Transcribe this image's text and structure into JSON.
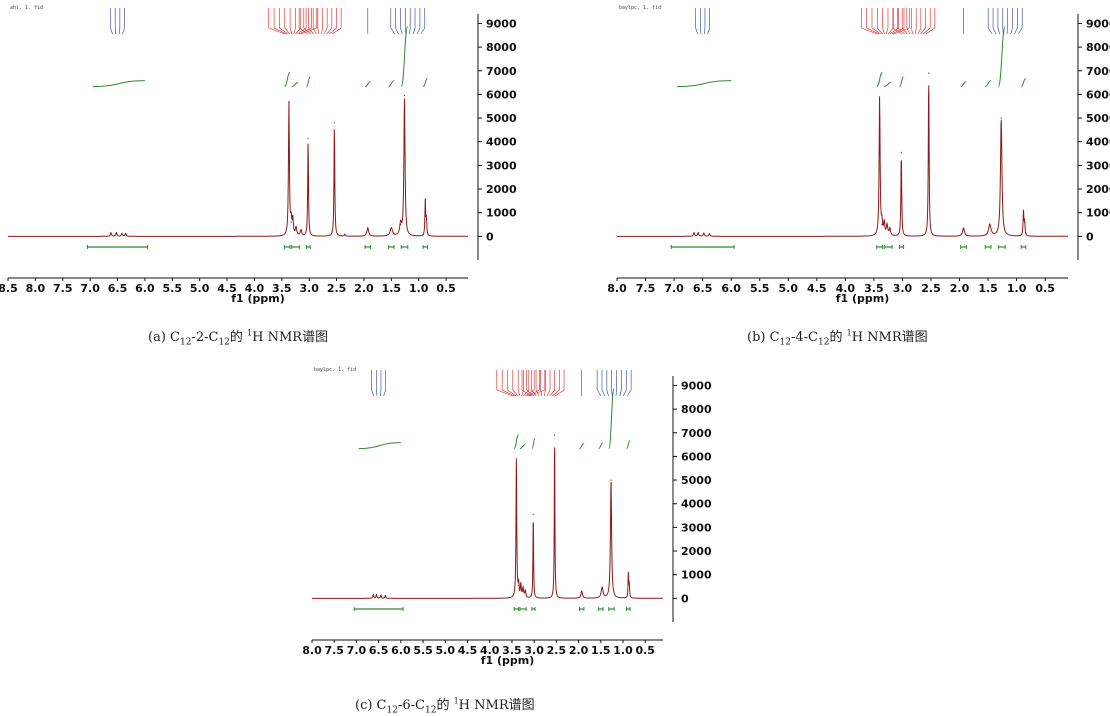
{
  "colors": {
    "spectrum": "#8b1a1a",
    "integral": "#2e8b2e",
    "peak_label_red": "#d62020",
    "peak_label_blue": "#2a3f8f",
    "axis": "#111111"
  },
  "chart_data": [
    {
      "type": "line",
      "file_name": "ahl. 1. fid",
      "caption": {
        "prefix": "(a) C",
        "sub1": "12",
        "mid": "-2-C",
        "sub2": "12",
        "after": "的 ",
        "sup": "1",
        "suffix": "H NMR谱图"
      },
      "xlabel": "f1 (ppm)",
      "x_ticks": [
        "8.5",
        "8.0",
        "7.5",
        "7.0",
        "6.5",
        "6.0",
        "5.5",
        "5.0",
        "4.5",
        "4.0",
        "3.5",
        "3.0",
        "2.5",
        "2.0",
        "1.5",
        "1.0",
        "0.5"
      ],
      "y_ticks": [
        "0",
        "1000",
        "2000",
        "3000",
        "4000",
        "5000",
        "6000",
        "7000",
        "8000",
        "9000"
      ],
      "xlim": [
        8.5,
        0.1
      ],
      "ylim": [
        -1000,
        9400
      ],
      "peaks": [
        {
          "x": 6.62,
          "y": 150,
          "w": 0.012
        },
        {
          "x": 6.52,
          "y": 150,
          "w": 0.012
        },
        {
          "x": 6.42,
          "y": 120,
          "w": 0.012
        },
        {
          "x": 6.35,
          "y": 120,
          "w": 0.012
        },
        {
          "x": 3.37,
          "y": 5650,
          "w": 0.01
        },
        {
          "x": 3.33,
          "y": 600,
          "w": 0.012
        },
        {
          "x": 3.3,
          "y": 700,
          "w": 0.012
        },
        {
          "x": 3.24,
          "y": 350,
          "w": 0.015
        },
        {
          "x": 3.15,
          "y": 250,
          "w": 0.015
        },
        {
          "x": 3.02,
          "y": 4150,
          "w": 0.008
        },
        {
          "x": 2.54,
          "y": 4800,
          "w": 0.008
        },
        {
          "x": 2.35,
          "y": 80,
          "w": 0.01
        },
        {
          "x": 1.93,
          "y": 350,
          "w": 0.02
        },
        {
          "x": 1.5,
          "y": 350,
          "w": 0.025
        },
        {
          "x": 1.33,
          "y": 500,
          "w": 0.02
        },
        {
          "x": 1.26,
          "y": 5950,
          "w": 0.012
        },
        {
          "x": 0.88,
          "y": 1500,
          "w": 0.008
        },
        {
          "x": 0.86,
          "y": 700,
          "w": 0.008
        }
      ]
    },
    {
      "type": "line",
      "file_name": "baylpc. 1. fid",
      "caption": {
        "prefix": "(b) C",
        "sub1": "12",
        "mid": "-4-C",
        "sub2": "12",
        "after": "的 ",
        "sup": "1",
        "suffix": "H NMR谱图"
      },
      "xlabel": "f1 (ppm)",
      "x_ticks": [
        "8.0",
        "7.5",
        "7.0",
        "6.5",
        "6.0",
        "5.5",
        "5.0",
        "4.5",
        "4.0",
        "3.5",
        "3.0",
        "2.5",
        "2.0",
        "1.5",
        "1.0",
        "0.5"
      ],
      "y_ticks": [
        "0",
        "1000",
        "2000",
        "3000",
        "4000",
        "5000",
        "6000",
        "7000",
        "8000",
        "9000"
      ],
      "xlim": [
        8.0,
        0.1
      ],
      "ylim": [
        -1000,
        9400
      ],
      "peaks": [
        {
          "x": 6.65,
          "y": 150,
          "w": 0.012
        },
        {
          "x": 6.58,
          "y": 150,
          "w": 0.012
        },
        {
          "x": 6.48,
          "y": 130,
          "w": 0.012
        },
        {
          "x": 6.38,
          "y": 110,
          "w": 0.012
        },
        {
          "x": 3.4,
          "y": 5900,
          "w": 0.01
        },
        {
          "x": 3.36,
          "y": 500,
          "w": 0.012
        },
        {
          "x": 3.32,
          "y": 550,
          "w": 0.012
        },
        {
          "x": 3.27,
          "y": 450,
          "w": 0.015
        },
        {
          "x": 3.22,
          "y": 300,
          "w": 0.015
        },
        {
          "x": 3.02,
          "y": 3550,
          "w": 0.008
        },
        {
          "x": 2.54,
          "y": 6900,
          "w": 0.008
        },
        {
          "x": 1.93,
          "y": 350,
          "w": 0.02
        },
        {
          "x": 1.47,
          "y": 500,
          "w": 0.025
        },
        {
          "x": 1.27,
          "y": 5000,
          "w": 0.015
        },
        {
          "x": 0.88,
          "y": 1050,
          "w": 0.008
        },
        {
          "x": 0.86,
          "y": 600,
          "w": 0.008
        }
      ]
    },
    {
      "type": "line",
      "file_name": "baylpc. 1. fid",
      "caption": {
        "prefix": "(c) C",
        "sub1": "12",
        "mid": "-6-C",
        "sub2": "12",
        "after": "的 ",
        "sup": "1",
        "suffix": "H NMR谱图"
      },
      "xlabel": "f1 (ppm)",
      "x_ticks": [
        "8.0",
        "7.5",
        "7.0",
        "6.5",
        "6.0",
        "5.5",
        "5.0",
        "4.5",
        "4.0",
        "3.5",
        "3.0",
        "2.5",
        "2.0",
        "1.5",
        "1.0",
        "0.5"
      ],
      "y_ticks": [
        "0",
        "1000",
        "2000",
        "3000",
        "4000",
        "5000",
        "6000",
        "7000",
        "8000",
        "9000"
      ],
      "xlim": [
        8.0,
        0.1
      ],
      "ylim": [
        -1000,
        9400
      ],
      "peaks": [
        {
          "x": 6.62,
          "y": 150,
          "w": 0.012
        },
        {
          "x": 6.55,
          "y": 150,
          "w": 0.012
        },
        {
          "x": 6.45,
          "y": 130,
          "w": 0.012
        },
        {
          "x": 6.35,
          "y": 110,
          "w": 0.012
        },
        {
          "x": 3.4,
          "y": 5900,
          "w": 0.01
        },
        {
          "x": 3.35,
          "y": 550,
          "w": 0.012
        },
        {
          "x": 3.3,
          "y": 550,
          "w": 0.012
        },
        {
          "x": 3.25,
          "y": 400,
          "w": 0.015
        },
        {
          "x": 3.2,
          "y": 300,
          "w": 0.015
        },
        {
          "x": 3.02,
          "y": 3550,
          "w": 0.008
        },
        {
          "x": 2.54,
          "y": 6900,
          "w": 0.008
        },
        {
          "x": 1.93,
          "y": 300,
          "w": 0.02
        },
        {
          "x": 1.47,
          "y": 450,
          "w": 0.025
        },
        {
          "x": 1.27,
          "y": 5000,
          "w": 0.015
        },
        {
          "x": 0.88,
          "y": 1050,
          "w": 0.008
        },
        {
          "x": 0.86,
          "y": 600,
          "w": 0.008
        }
      ]
    }
  ]
}
